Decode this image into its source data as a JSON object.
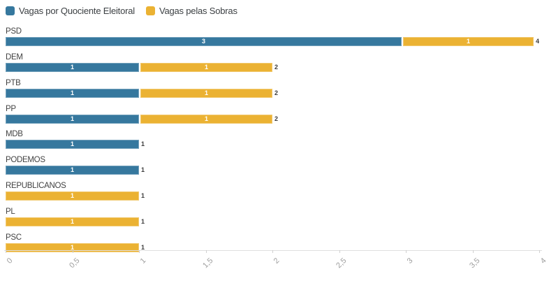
{
  "legend": {
    "items": [
      {
        "label": "Vagas por Quociente Eleitoral",
        "color": "#36789E"
      },
      {
        "label": "Vagas pelas Sobras",
        "color": "#EBB233"
      }
    ]
  },
  "chart_data": {
    "type": "bar",
    "orientation": "horizontal",
    "stacked": true,
    "categories": [
      "PSD",
      "DEM",
      "PTB",
      "PP",
      "MDB",
      "PODEMOS",
      "REPUBLICANOS",
      "PL",
      "PSC"
    ],
    "series": [
      {
        "name": "Vagas por Quociente Eleitoral",
        "color": "#36789E",
        "values": [
          3,
          1,
          1,
          1,
          1,
          1,
          0,
          0,
          0
        ]
      },
      {
        "name": "Vagas pelas Sobras",
        "color": "#EBB233",
        "values": [
          1,
          1,
          1,
          1,
          0,
          0,
          1,
          1,
          1
        ]
      }
    ],
    "totals": [
      4,
      2,
      2,
      2,
      1,
      1,
      1,
      1,
      1
    ],
    "xlim": [
      0,
      4
    ],
    "x_ticks": [
      "0",
      "0,5",
      "1",
      "1,5",
      "2",
      "2,5",
      "3",
      "3,5",
      "4"
    ],
    "grid": false,
    "legend_position": "top"
  },
  "colors": {
    "axis_line": "#E0E0E0",
    "tick_mark": "#D0D0D0",
    "tick_label": "#9E9E9E",
    "category_label": "#424242",
    "total_label": "#3C3C3C",
    "bar_value_text": "#FFFFFF",
    "background": "#FFFFFF"
  }
}
